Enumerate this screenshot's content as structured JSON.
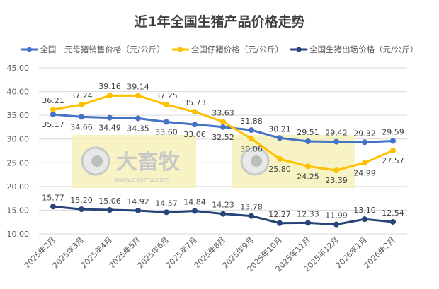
{
  "chart_data": {
    "type": "line",
    "title": "近1年全国生猪产品价格走势",
    "categories": [
      "2025年2月",
      "2025年3月",
      "2025年4月",
      "2025年5月",
      "2025年6月",
      "2025年7月",
      "2025年8月",
      "2025年9月",
      "2025年10月",
      "2025年11月",
      "2025年12月",
      "2026年1月",
      "2026年2月"
    ],
    "ylim": [
      10,
      45
    ],
    "yticks": [
      "10.00",
      "15.00",
      "20.00",
      "25.00",
      "30.00",
      "35.00",
      "40.00",
      "45.00"
    ],
    "grid": true,
    "legend_position": "top",
    "series": [
      {
        "name": "全国二元母猪销售价格（元/公斤）",
        "color": "#4472C4",
        "values": [
          35.17,
          34.66,
          34.49,
          34.35,
          33.6,
          33.06,
          32.52,
          31.88,
          30.21,
          29.51,
          29.42,
          29.32,
          29.59
        ],
        "label_pos": [
          "below",
          "below",
          "below",
          "below",
          "below",
          "below",
          "below",
          "above",
          "above",
          "above",
          "above",
          "above",
          "above"
        ]
      },
      {
        "name": "全国仔猪价格（元/公斤）",
        "color": "#FFC000",
        "values": [
          36.21,
          37.24,
          39.16,
          39.14,
          37.25,
          35.73,
          33.63,
          30.06,
          25.8,
          24.25,
          23.39,
          24.99,
          27.57
        ],
        "label_pos": [
          "above",
          "above",
          "above",
          "above",
          "above",
          "above",
          "above",
          "below",
          "below",
          "below",
          "below",
          "below",
          "below"
        ]
      },
      {
        "name": "全国生猪出场价格（元/公斤）",
        "color": "#264478",
        "values": [
          15.77,
          15.2,
          15.06,
          14.92,
          14.57,
          14.84,
          14.23,
          13.78,
          12.27,
          12.33,
          11.99,
          13.1,
          12.54
        ],
        "label_pos": [
          "above",
          "above",
          "above",
          "above",
          "above",
          "above",
          "above",
          "above",
          "above",
          "above",
          "above",
          "above",
          "above"
        ]
      }
    ]
  },
  "watermark": {
    "brand": "大畜牧",
    "url": "www.dxumu.com"
  }
}
